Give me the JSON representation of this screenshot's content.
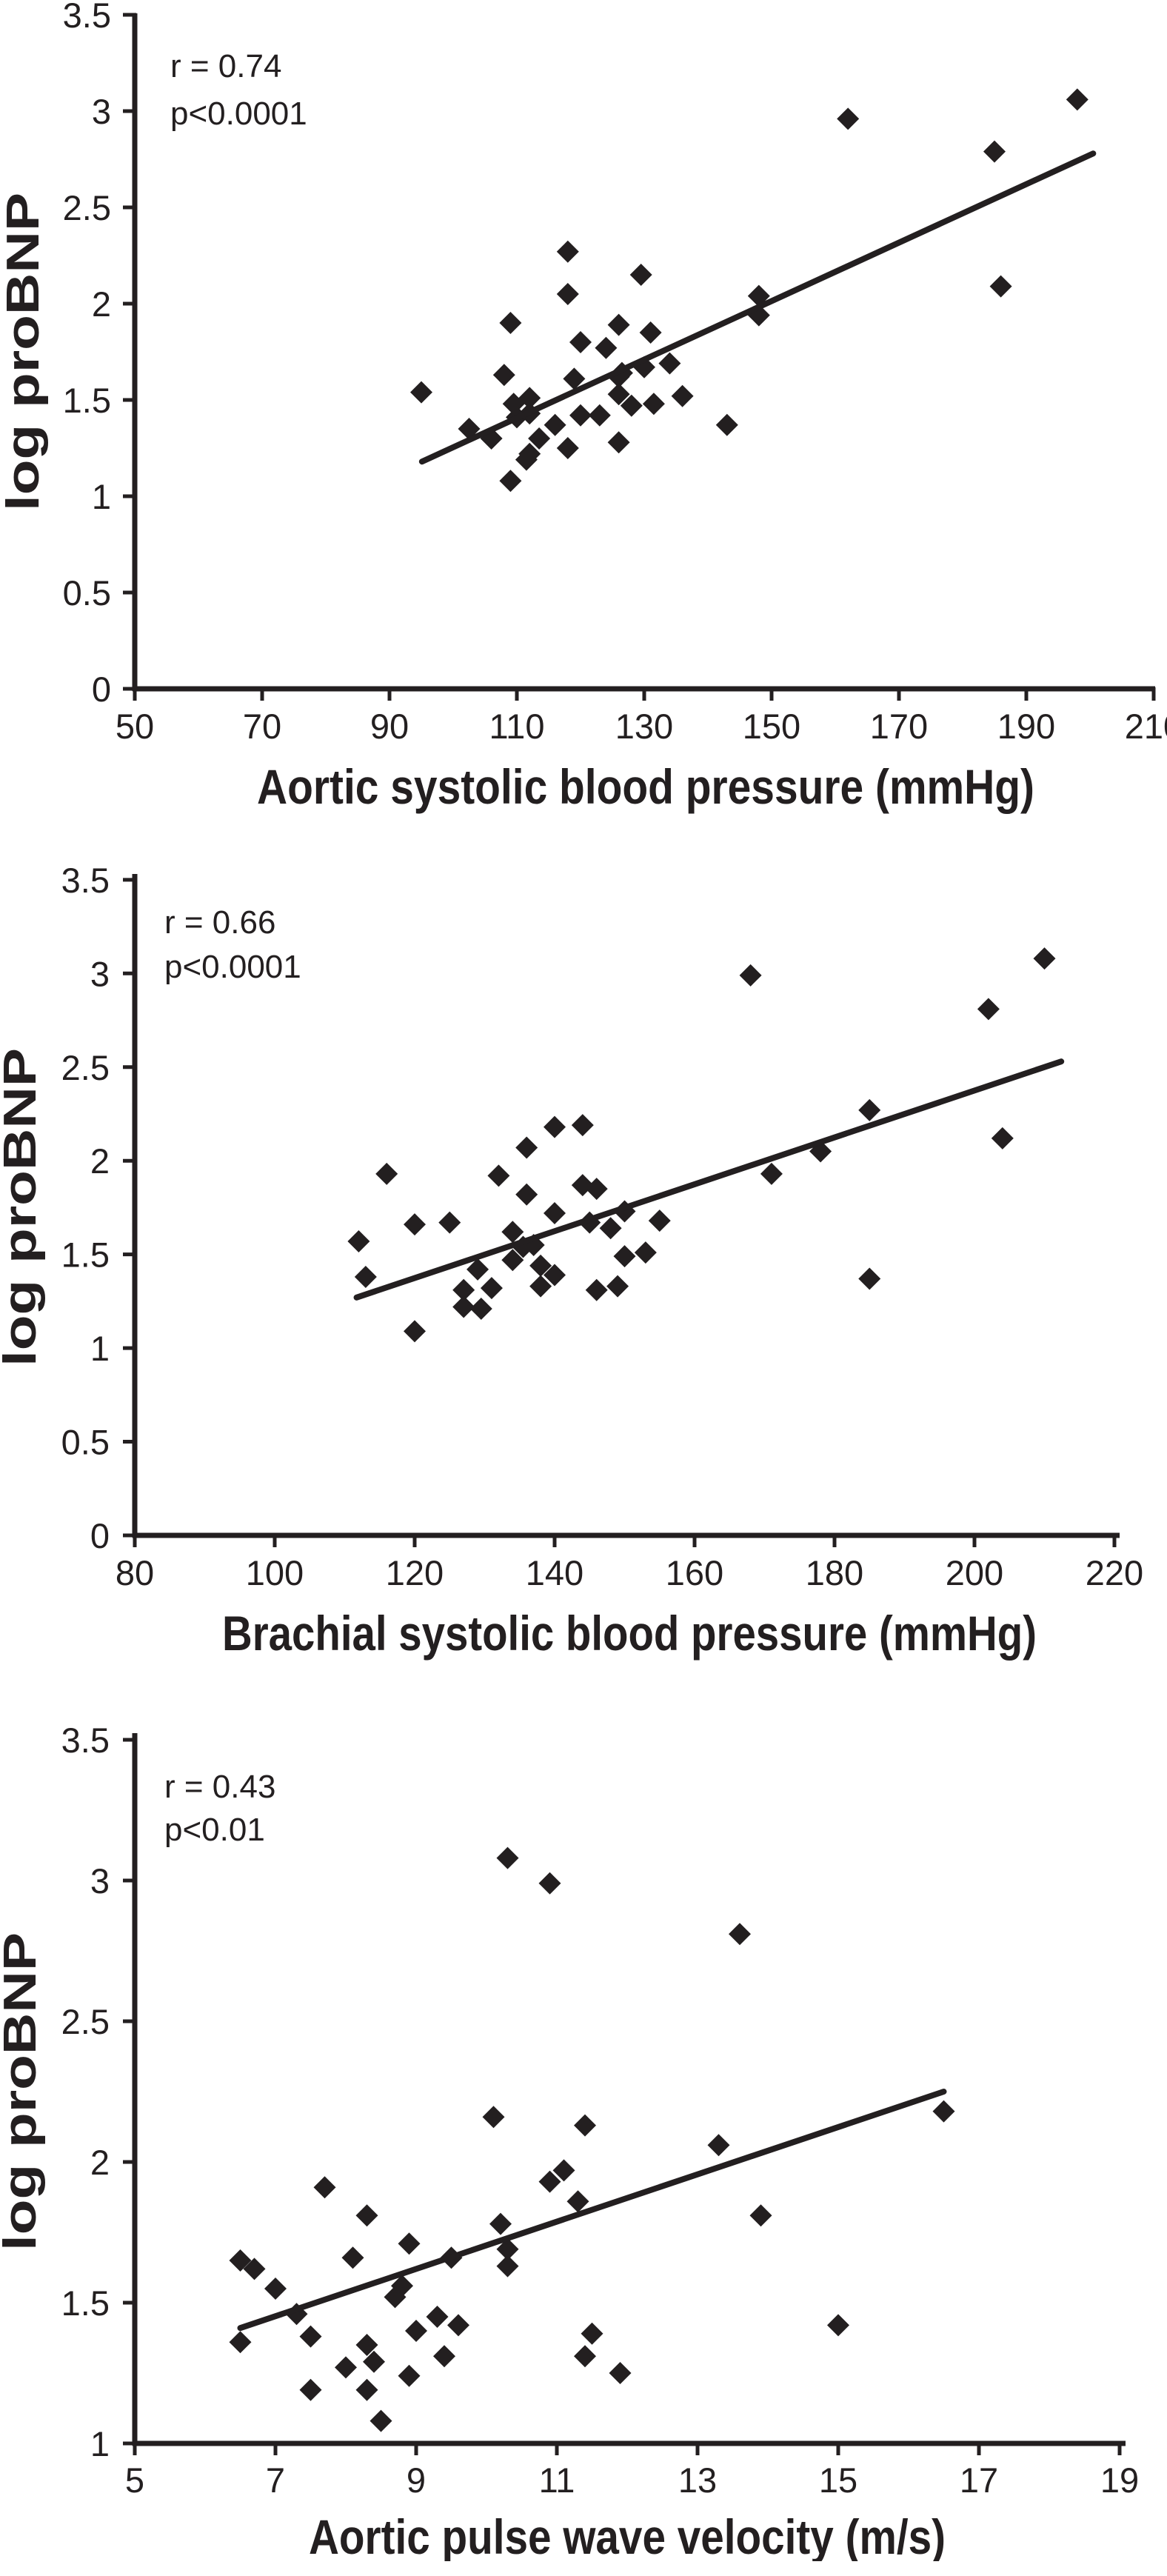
{
  "figure": {
    "background": "#ffffff",
    "ink": "#231f20",
    "ylabel_shared": "log proBNP"
  },
  "chart_data": [
    {
      "type": "scatter",
      "xlabel": "Aortic systolic blood pressure (mmHg)",
      "ylabel": "log proBNP",
      "annotation": {
        "r_label": "r = 0.74",
        "p_label": "p<0.0001"
      },
      "xlim": [
        50,
        210
      ],
      "ylim": [
        0,
        3.5
      ],
      "x_ticks": [
        50,
        70,
        90,
        110,
        130,
        150,
        170,
        190,
        210
      ],
      "y_ticks": [
        0,
        0.5,
        1,
        1.5,
        2,
        2.5,
        3,
        3.5
      ],
      "grid": false,
      "legend": "none",
      "marker": "diamond",
      "points": [
        [
          95,
          1.54
        ],
        [
          102.5,
          1.35
        ],
        [
          106,
          1.3
        ],
        [
          108,
          1.63
        ],
        [
          109,
          1.9
        ],
        [
          109.5,
          1.48
        ],
        [
          110,
          1.41
        ],
        [
          109,
          1.08
        ],
        [
          112,
          1.51
        ],
        [
          112,
          1.43
        ],
        [
          112,
          1.22
        ],
        [
          113.5,
          1.3
        ],
        [
          111.5,
          1.19
        ],
        [
          116,
          1.37
        ],
        [
          118,
          2.27
        ],
        [
          118,
          2.05
        ],
        [
          118,
          1.25
        ],
        [
          119,
          1.61
        ],
        [
          120,
          1.8
        ],
        [
          120,
          1.42
        ],
        [
          123,
          1.42
        ],
        [
          124,
          1.77
        ],
        [
          126,
          1.89
        ],
        [
          126.5,
          1.64
        ],
        [
          126,
          1.62
        ],
        [
          126,
          1.53
        ],
        [
          126,
          1.28
        ],
        [
          128,
          1.47
        ],
        [
          129.5,
          2.15
        ],
        [
          130,
          1.67
        ],
        [
          131,
          1.85
        ],
        [
          131.5,
          1.48
        ],
        [
          134,
          1.69
        ],
        [
          136,
          1.52
        ],
        [
          143,
          1.37
        ],
        [
          148,
          2.04
        ],
        [
          148,
          1.94
        ],
        [
          162,
          2.96
        ],
        [
          185,
          2.79
        ],
        [
          186,
          2.09
        ],
        [
          198,
          3.06
        ]
      ],
      "trendline": {
        "x1": 95.1,
        "y1": 1.18,
        "x2": 200.5,
        "y2": 2.78
      }
    },
    {
      "type": "scatter",
      "xlabel": "Brachial systolic blood pressure (mmHg)",
      "ylabel": "log proBNP",
      "annotation": {
        "r_label": "r = 0.66",
        "p_label": "p<0.0001"
      },
      "xlim": [
        80,
        220
      ],
      "ylim": [
        0,
        3.5
      ],
      "x_ticks": [
        80,
        100,
        120,
        140,
        160,
        180,
        200,
        220
      ],
      "y_ticks": [
        0,
        0.5,
        1,
        1.5,
        2,
        2.5,
        3,
        3.5
      ],
      "grid": false,
      "legend": "none",
      "marker": "diamond",
      "points": [
        [
          112,
          1.57
        ],
        [
          113,
          1.38
        ],
        [
          116,
          1.93
        ],
        [
          120,
          1.66
        ],
        [
          120,
          1.09
        ],
        [
          125,
          1.67
        ],
        [
          127,
          1.31
        ],
        [
          127,
          1.22
        ],
        [
          129,
          1.42
        ],
        [
          129.5,
          1.21
        ],
        [
          131,
          1.32
        ],
        [
          132,
          1.92
        ],
        [
          134,
          1.62
        ],
        [
          134,
          1.47
        ],
        [
          136,
          2.07
        ],
        [
          136,
          1.82
        ],
        [
          135.5,
          1.54
        ],
        [
          137,
          1.55
        ],
        [
          138,
          1.44
        ],
        [
          138,
          1.33
        ],
        [
          140,
          2.18
        ],
        [
          140,
          1.72
        ],
        [
          140,
          1.39
        ],
        [
          144,
          2.19
        ],
        [
          144,
          1.87
        ],
        [
          145,
          1.67
        ],
        [
          146,
          1.85
        ],
        [
          146,
          1.31
        ],
        [
          148,
          1.64
        ],
        [
          149,
          1.33
        ],
        [
          150,
          1.73
        ],
        [
          150,
          1.49
        ],
        [
          153,
          1.51
        ],
        [
          155,
          1.68
        ],
        [
          168,
          2.99
        ],
        [
          171,
          1.93
        ],
        [
          178,
          2.05
        ],
        [
          185,
          2.27
        ],
        [
          185,
          1.37
        ],
        [
          202,
          2.81
        ],
        [
          204,
          2.12
        ],
        [
          210,
          3.08
        ]
      ],
      "trendline": {
        "x1": 111.7,
        "y1": 1.27,
        "x2": 212.4,
        "y2": 2.53
      }
    },
    {
      "type": "scatter",
      "xlabel": "Aortic pulse wave velocity (m/s)",
      "ylabel": "log proBNP",
      "annotation": {
        "r_label": "r = 0.43",
        "p_label": "p<0.01"
      },
      "xlim": [
        5,
        19
      ],
      "ylim": [
        1,
        3.5
      ],
      "x_ticks": [
        5,
        7,
        9,
        11,
        13,
        15,
        17,
        19
      ],
      "y_ticks": [
        1,
        1.5,
        2,
        2.5,
        3,
        3.5
      ],
      "grid": false,
      "legend": "none",
      "marker": "diamond",
      "points": [
        [
          6.5,
          1.65
        ],
        [
          6.7,
          1.62
        ],
        [
          6.5,
          1.36
        ],
        [
          7.0,
          1.55
        ],
        [
          7.3,
          1.46
        ],
        [
          7.5,
          1.38
        ],
        [
          7.5,
          1.19
        ],
        [
          7.7,
          1.91
        ],
        [
          8.0,
          1.27
        ],
        [
          8.1,
          1.66
        ],
        [
          8.3,
          1.81
        ],
        [
          8.3,
          1.35
        ],
        [
          8.4,
          1.29
        ],
        [
          8.3,
          1.19
        ],
        [
          8.5,
          1.08
        ],
        [
          8.7,
          1.52
        ],
        [
          8.8,
          1.56
        ],
        [
          8.9,
          1.71
        ],
        [
          8.9,
          1.24
        ],
        [
          9.0,
          1.4
        ],
        [
          9.3,
          1.45
        ],
        [
          9.4,
          1.31
        ],
        [
          9.6,
          1.42
        ],
        [
          9.5,
          1.66
        ],
        [
          10.1,
          2.16
        ],
        [
          10.2,
          1.78
        ],
        [
          10.3,
          1.69
        ],
        [
          10.3,
          1.63
        ],
        [
          10.3,
          3.08
        ],
        [
          10.9,
          2.99
        ],
        [
          10.9,
          1.93
        ],
        [
          11.1,
          1.97
        ],
        [
          11.3,
          1.86
        ],
        [
          11.4,
          2.13
        ],
        [
          11.5,
          1.39
        ],
        [
          11.4,
          1.31
        ],
        [
          11.9,
          1.25
        ],
        [
          13.3,
          2.06
        ],
        [
          13.6,
          2.81
        ],
        [
          13.9,
          1.81
        ],
        [
          15.0,
          1.42
        ],
        [
          16.5,
          2.18
        ]
      ],
      "trendline": {
        "x1": 6.5,
        "y1": 1.41,
        "x2": 16.5,
        "y2": 2.25
      }
    }
  ]
}
